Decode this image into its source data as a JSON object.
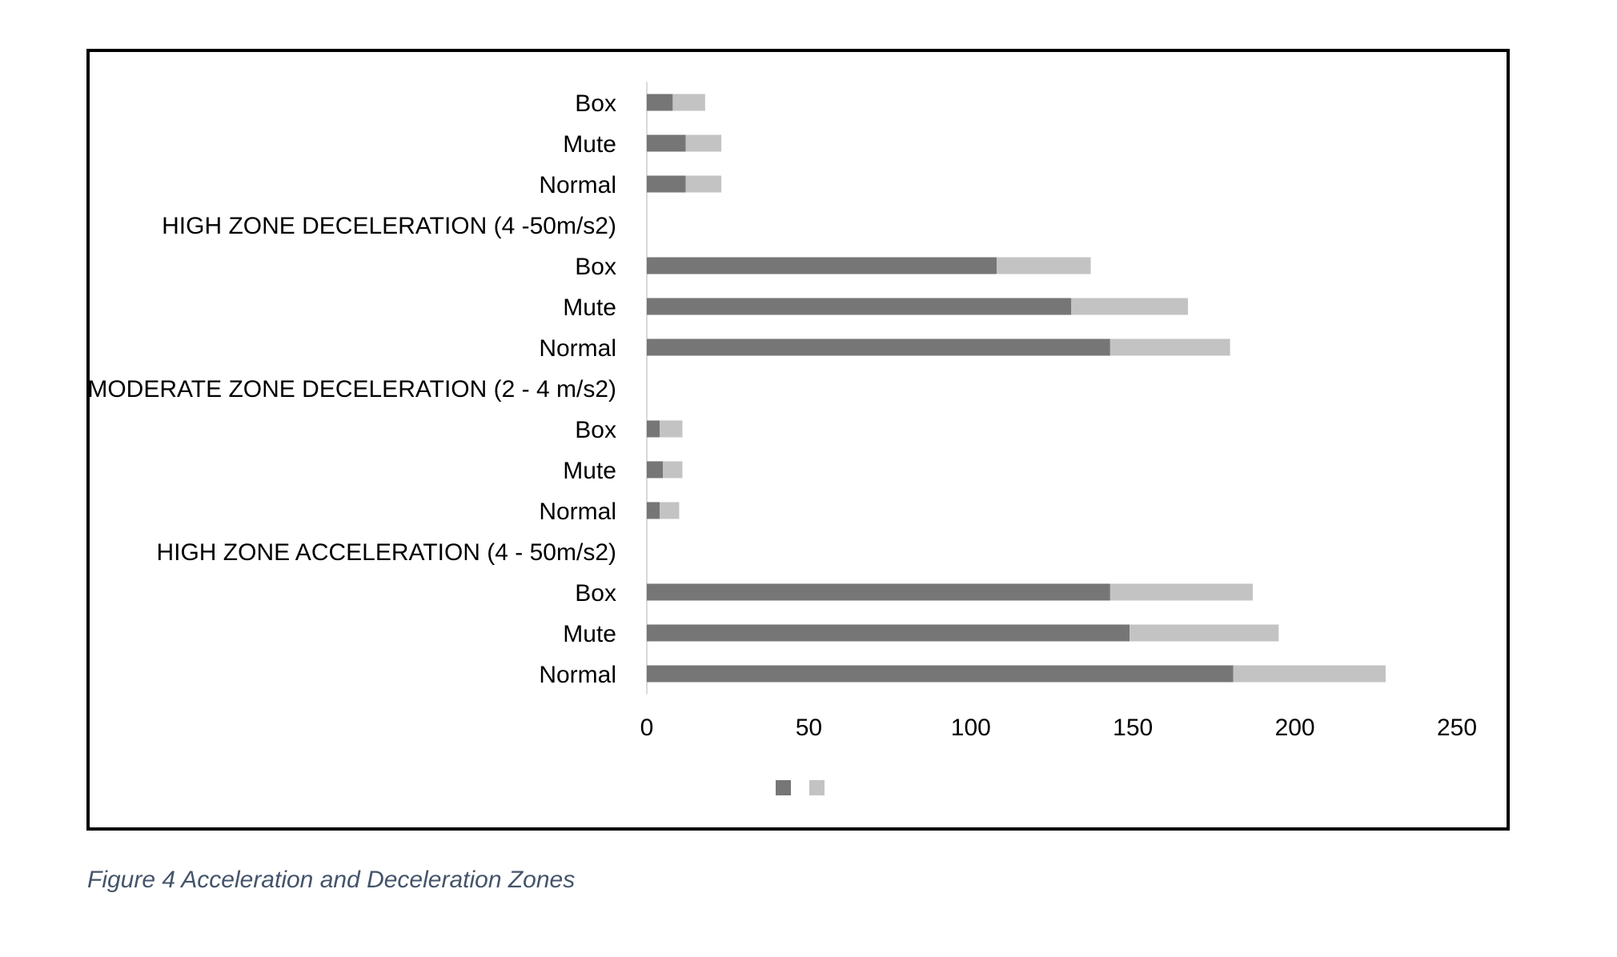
{
  "caption": "Figure 4 Acceleration and Deceleration Zones",
  "chart_data": {
    "type": "bar",
    "orientation": "horizontal",
    "stacked": true,
    "categories": [
      "Normal",
      "Mute",
      "Box",
      "HIGH ZONE ACCELERATION (4 - 50m/s2)",
      "Normal",
      "Mute",
      "Box",
      "MODERATE ZONE DECELERATION (2 - 4 m/s2)",
      "Normal",
      "Mute",
      "Box",
      "HIGH ZONE DECELERATION (4 -50m/s2)",
      "Normal",
      "Mute",
      "Box"
    ],
    "series": [
      {
        "color": "#767676",
        "values": [
          181,
          149,
          143,
          null,
          4,
          5,
          4,
          null,
          143,
          131,
          108,
          null,
          12,
          12,
          8
        ]
      },
      {
        "color": "#c3c3c3",
        "values": [
          47,
          46,
          44,
          null,
          6,
          6,
          7,
          null,
          37,
          36,
          29,
          null,
          11,
          11,
          10
        ]
      }
    ],
    "xlim": [
      0,
      250
    ],
    "xticks": [
      "0",
      "50",
      "100",
      "150",
      "200",
      "250"
    ],
    "grid": false,
    "legend": "bottom"
  }
}
